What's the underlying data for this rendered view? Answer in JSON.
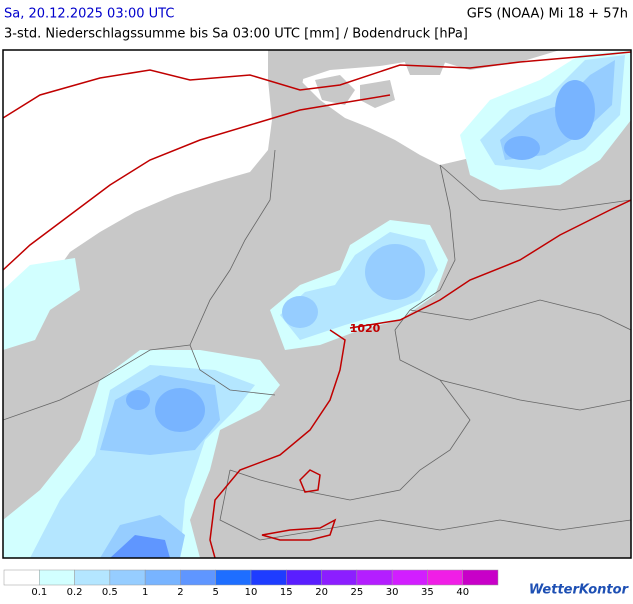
{
  "header": {
    "valid_time": "Sa, 20.12.2025 03:00 UTC",
    "model_run": "GFS (NOAA) Mi 18 + 57h",
    "subtitle": "3-std. Niederschlagssumme bis Sa 03:00 UTC [mm] / Bodendruck [hPa]"
  },
  "map": {
    "isobar_label": "1020"
  },
  "legend": {
    "levels": [
      0.1,
      0.2,
      0.5,
      1,
      2,
      5,
      10,
      15,
      20,
      25,
      30,
      35,
      40
    ],
    "colors": [
      "#ffffff",
      "#d2ffff",
      "#b4e6ff",
      "#96cdff",
      "#78b4ff",
      "#5f96ff",
      "#1e6eff",
      "#1e3cff",
      "#5a1eff",
      "#8c1eff",
      "#b41eff",
      "#d21eff",
      "#f01ee6",
      "#c800c8"
    ]
  },
  "brand": "WetterKontor"
}
